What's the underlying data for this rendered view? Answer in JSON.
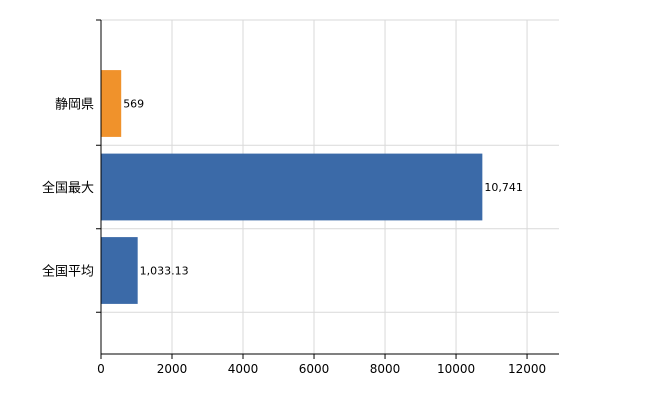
{
  "chart_data": {
    "type": "bar",
    "orientation": "horizontal",
    "title": "",
    "xlabel": "",
    "ylabel": "",
    "categories": [
      "静岡県",
      "全国最大",
      "全国平均"
    ],
    "values": [
      569,
      10741,
      1033.13
    ],
    "value_labels": [
      "569",
      "10,741",
      "1,033.13"
    ],
    "bar_colors": [
      "#f0922b",
      "#3b6aa8",
      "#3b6aa8"
    ],
    "xlim": [
      0,
      12900
    ],
    "xticks": [
      0,
      2000,
      4000,
      6000,
      8000,
      10000,
      12000
    ],
    "xtick_labels": [
      "0",
      "2000",
      "4000",
      "6000",
      "8000",
      "10000",
      "12000"
    ],
    "grid": true,
    "legend": "none"
  }
}
